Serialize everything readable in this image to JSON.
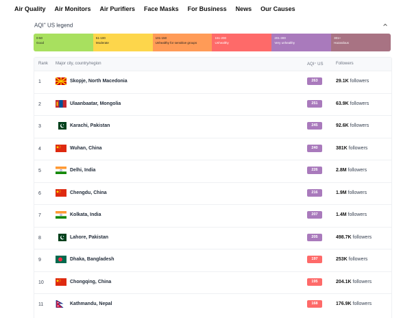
{
  "nav": [
    "Air Quality",
    "Air Monitors",
    "Air Purifiers",
    "Face Masks",
    "For Business",
    "News",
    "Our Causes"
  ],
  "legend": {
    "title": "AQI",
    "title_sup": "+",
    "title_suffix": "US legend",
    "segments": [
      {
        "range": "0-50",
        "label": "Good",
        "color": "#a8e05f"
      },
      {
        "range": "51-100",
        "label": "Moderate",
        "color": "#fdd64b"
      },
      {
        "range": "101-150",
        "label": "Unhealthy for sensitive groups",
        "color": "#ff9b57"
      },
      {
        "range": "151-200",
        "label": "Unhealthy",
        "color": "#fe6a69"
      },
      {
        "range": "201-300",
        "label": "Very unhealthy",
        "color": "#a97abc"
      },
      {
        "range": "301+",
        "label": "Hazardous",
        "color": "#a87383"
      }
    ]
  },
  "table": {
    "headers": {
      "rank": "Rank",
      "city": "Major city, country/region",
      "aqi": "AQI⁺ US",
      "followers": "Followers"
    },
    "followers_suffix": "followers",
    "rows": [
      {
        "rank": "1",
        "city": "Skopje, North Macedonia",
        "flag": "mk",
        "aqi": "263",
        "color": "#a97abc",
        "followers": "29.1K"
      },
      {
        "rank": "2",
        "city": "Ulaanbaatar, Mongolia",
        "flag": "mn",
        "aqi": "251",
        "color": "#a97abc",
        "followers": "63.9K"
      },
      {
        "rank": "3",
        "city": "Karachi, Pakistan",
        "flag": "pk",
        "aqi": "245",
        "color": "#a97abc",
        "followers": "92.6K"
      },
      {
        "rank": "4",
        "city": "Wuhan, China",
        "flag": "cn",
        "aqi": "240",
        "color": "#a97abc",
        "followers": "381K"
      },
      {
        "rank": "5",
        "city": "Delhi, India",
        "flag": "in",
        "aqi": "226",
        "color": "#a97abc",
        "followers": "2.8M"
      },
      {
        "rank": "6",
        "city": "Chengdu, China",
        "flag": "cn",
        "aqi": "216",
        "color": "#a97abc",
        "followers": "1.9M"
      },
      {
        "rank": "7",
        "city": "Kolkata, India",
        "flag": "in",
        "aqi": "207",
        "color": "#a97abc",
        "followers": "1.4M"
      },
      {
        "rank": "8",
        "city": "Lahore, Pakistan",
        "flag": "pk",
        "aqi": "205",
        "color": "#a97abc",
        "followers": "498.7K"
      },
      {
        "rank": "9",
        "city": "Dhaka, Bangladesh",
        "flag": "bd",
        "aqi": "197",
        "color": "#fe6a69",
        "followers": "253K"
      },
      {
        "rank": "10",
        "city": "Chongqing, China",
        "flag": "cn",
        "aqi": "195",
        "color": "#fe6a69",
        "followers": "204.1K"
      },
      {
        "rank": "11",
        "city": "Kathmandu, Nepal",
        "flag": "np",
        "aqi": "168",
        "color": "#fe6a69",
        "followers": "176.9K"
      }
    ]
  }
}
